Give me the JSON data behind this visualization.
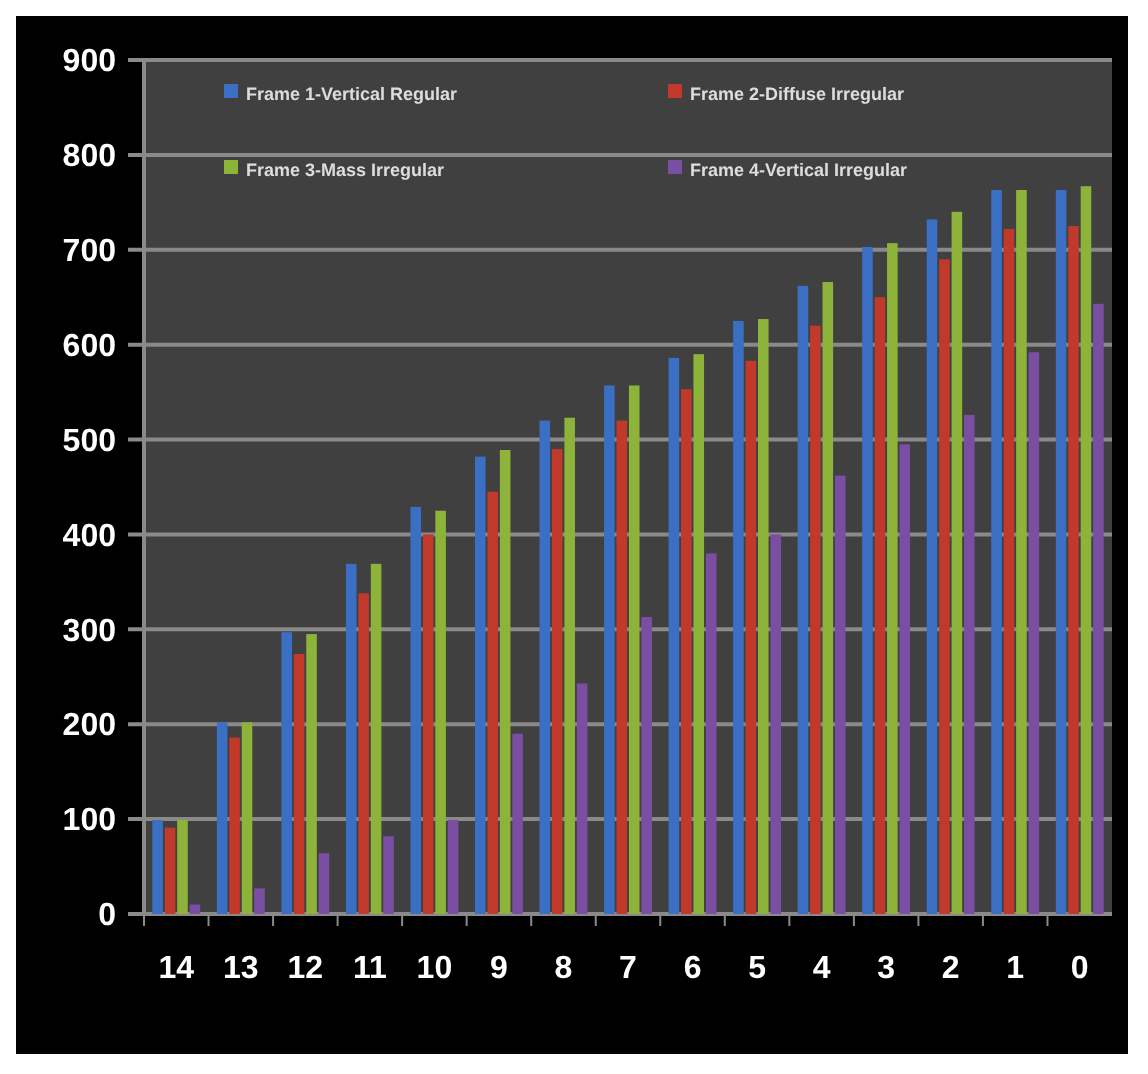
{
  "chart_data": {
    "type": "bar",
    "categories": [
      "14",
      "13",
      "12",
      "11",
      "10",
      "9",
      "8",
      "7",
      "6",
      "5",
      "4",
      "3",
      "2",
      "1",
      "0"
    ],
    "series": [
      {
        "name": "Frame 1-Vertical Regular",
        "color": "#3a6fc4",
        "values": [
          99,
          202,
          297,
          369,
          429,
          482,
          520,
          557,
          586,
          625,
          662,
          703,
          732,
          763,
          763
        ]
      },
      {
        "name": "Frame 2-Diffuse Irregular",
        "color": "#c0392b",
        "values": [
          91,
          186,
          274,
          338,
          400,
          445,
          490,
          520,
          553,
          583,
          620,
          650,
          690,
          722,
          725
        ]
      },
      {
        "name": "Frame 3-Mass Irregular",
        "color": "#8db33a",
        "values": [
          99,
          202,
          295,
          369,
          425,
          489,
          523,
          557,
          590,
          627,
          666,
          707,
          740,
          763,
          767
        ]
      },
      {
        "name": "Frame 4-Vertical Irregular",
        "color": "#7a4fa3",
        "values": [
          10,
          27,
          64,
          82,
          99,
          190,
          243,
          313,
          380,
          400,
          462,
          495,
          526,
          592,
          643
        ]
      }
    ],
    "ylim": [
      0,
      900
    ],
    "yticks": [
      0,
      100,
      200,
      300,
      400,
      500,
      600,
      700,
      800,
      900
    ],
    "grid": "y",
    "legend": "top"
  }
}
